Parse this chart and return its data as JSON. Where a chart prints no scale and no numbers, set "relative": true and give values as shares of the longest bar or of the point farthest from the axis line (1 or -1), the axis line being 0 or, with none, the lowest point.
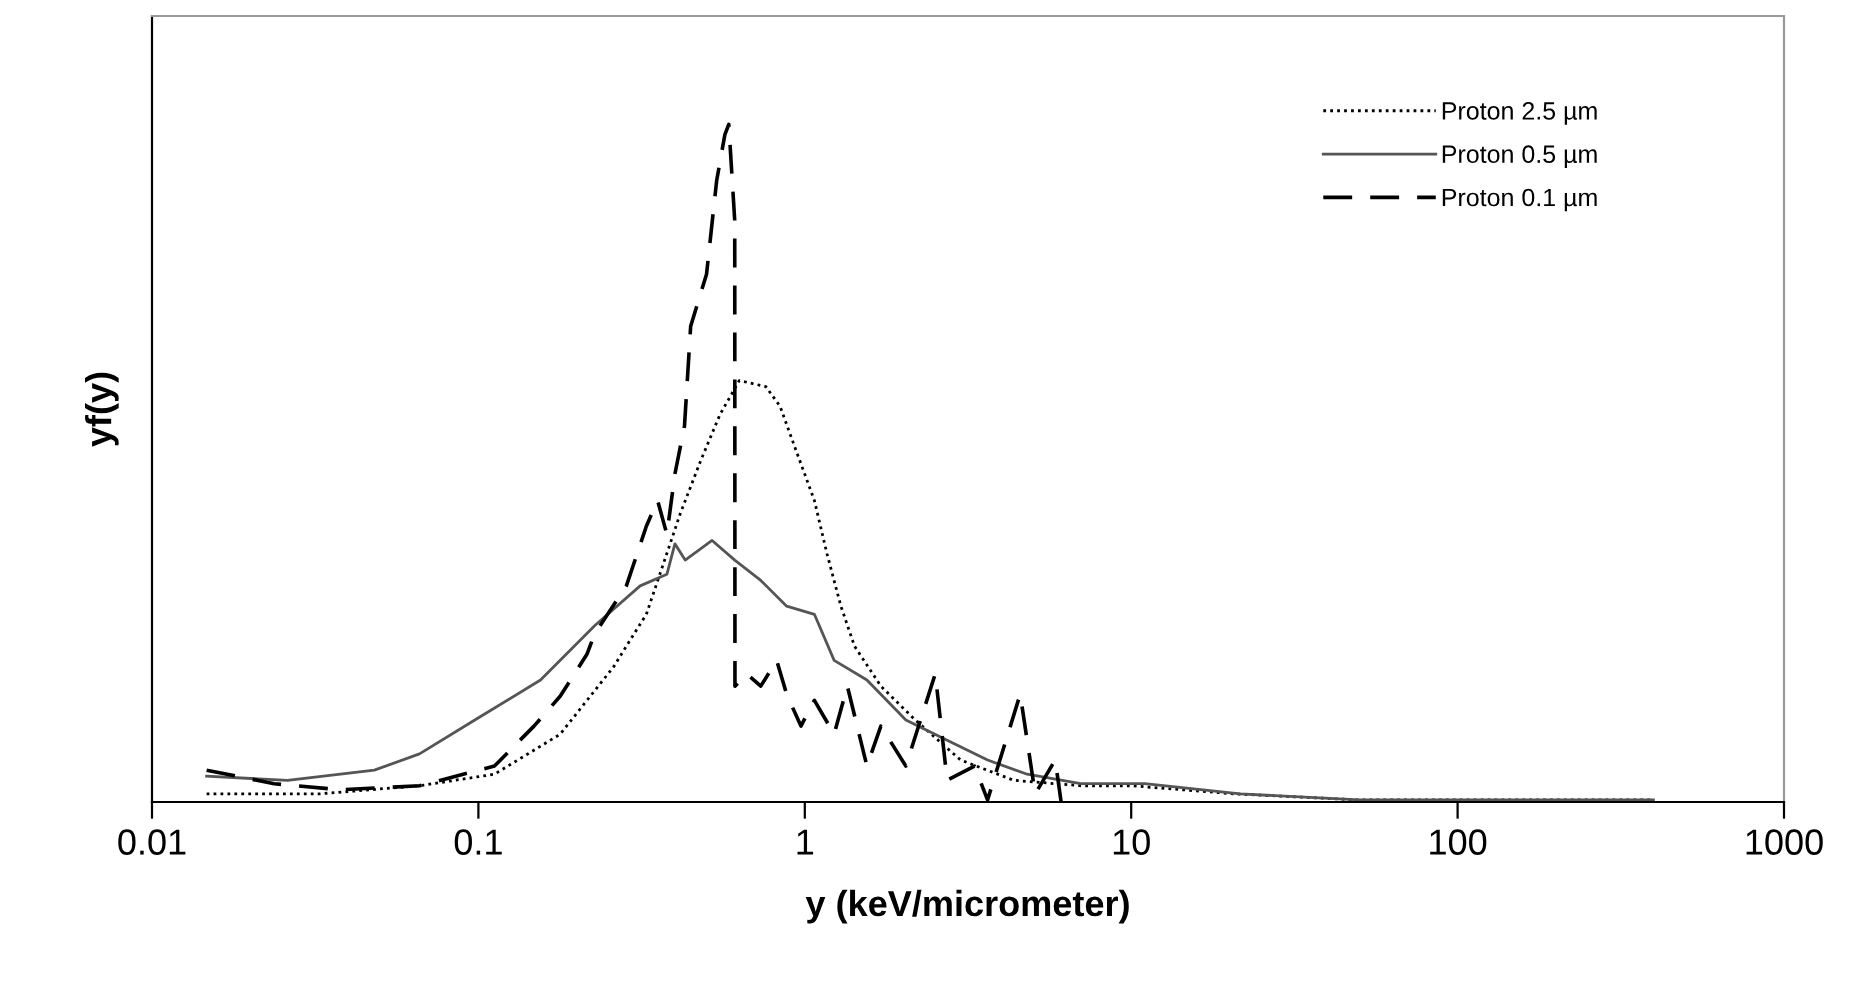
{
  "chart_data": {
    "type": "line",
    "relative": true,
    "xlabel": "y (keV/micrometer)",
    "ylabel": "yf(y)",
    "log": "x",
    "xlim": [
      0.01,
      1000
    ],
    "xticks": [
      0.01,
      0.1,
      1,
      10,
      100,
      1000
    ],
    "grid": false,
    "legend": "top right",
    "marker": "none",
    "series": [
      {
        "name": "Proton 2.5 µm",
        "color": "#000000",
        "line_style": "dotted",
        "x": [
          0.0147,
          0.0327,
          0.066,
          0.112,
          0.178,
          0.26,
          0.284,
          0.327,
          0.415,
          0.48,
          0.55,
          0.63,
          0.76,
          0.84,
          0.93,
          1.07,
          1.17,
          1.29,
          1.42,
          1.71,
          2.18,
          3.0,
          4.37,
          7.0,
          10,
          20.7,
          50,
          398
        ],
        "values": [
          0.012,
          0.012,
          0.024,
          0.041,
          0.1,
          0.2,
          0.23,
          0.277,
          0.425,
          0.504,
          0.572,
          0.622,
          0.613,
          0.584,
          0.525,
          0.445,
          0.366,
          0.289,
          0.23,
          0.171,
          0.121,
          0.062,
          0.032,
          0.024,
          0.024,
          0.012,
          0.003,
          0.003
        ]
      },
      {
        "name": "Proton 0.5 µm",
        "color": "#555555",
        "line_style": "solid",
        "x": [
          0.0147,
          0.026,
          0.048,
          0.066,
          0.0975,
          0.155,
          0.227,
          0.313,
          0.378,
          0.4,
          0.43,
          0.52,
          0.61,
          0.733,
          0.88,
          1.07,
          1.23,
          1.55,
          2.04,
          2.73,
          3.63,
          4.8,
          7.0,
          11,
          21.6,
          50,
          398
        ],
        "values": [
          0.038,
          0.032,
          0.047,
          0.071,
          0.121,
          0.18,
          0.26,
          0.319,
          0.336,
          0.381,
          0.357,
          0.386,
          0.357,
          0.327,
          0.289,
          0.277,
          0.209,
          0.18,
          0.121,
          0.091,
          0.062,
          0.041,
          0.027,
          0.027,
          0.012,
          0.003,
          0.003
        ]
      },
      {
        "name": "Proton 0.1 µm",
        "color": "#000000",
        "line_style": "dashed",
        "x": [
          0.0147,
          0.0237,
          0.0378,
          0.066,
          0.112,
          0.148,
          0.178,
          0.215,
          0.227,
          0.284,
          0.327,
          0.354,
          0.378,
          0.4,
          0.428,
          0.447,
          0.5,
          0.537,
          0.569,
          0.585,
          0.61,
          0.611,
          0.664,
          0.733,
          0.82,
          0.88,
          0.973,
          1.07,
          1.23,
          1.35,
          1.55,
          1.71,
          2.04,
          2.51,
          2.73,
          3.31,
          3.63,
          4.57,
          5.08,
          5.85,
          6.1
        ],
        "values": [
          0.047,
          0.027,
          0.018,
          0.024,
          0.053,
          0.112,
          0.156,
          0.218,
          0.248,
          0.319,
          0.407,
          0.445,
          0.395,
          0.484,
          0.555,
          0.702,
          0.779,
          0.917,
          0.985,
          1.0,
          0.858,
          0.171,
          0.189,
          0.171,
          0.209,
          0.159,
          0.112,
          0.15,
          0.1,
          0.171,
          0.053,
          0.112,
          0.053,
          0.189,
          0.032,
          0.053,
          0.003,
          0.159,
          0.012,
          0.062,
          0.0
        ]
      }
    ]
  }
}
